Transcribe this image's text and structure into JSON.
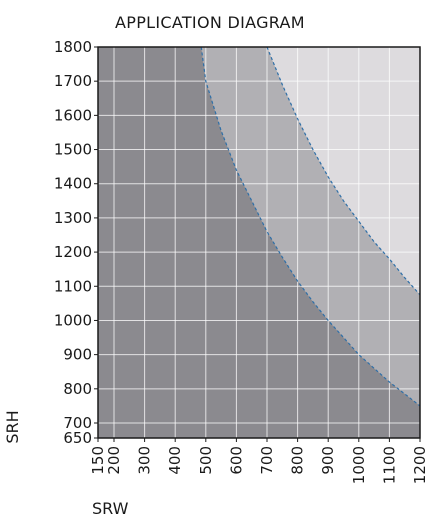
{
  "chart_data": {
    "type": "area",
    "title": "APPLICATION DIAGRAM",
    "xlabel": "SRW",
    "ylabel": "SRH",
    "xlim": [
      150,
      1200
    ],
    "ylim": [
      650,
      1800
    ],
    "x_ticks": [
      "150",
      "200",
      "300",
      "400",
      "500",
      "600",
      "700",
      "800",
      "900",
      "1000",
      "1100",
      "1200"
    ],
    "y_ticks": [
      "650",
      "700",
      "800",
      "900",
      "1000",
      "1100",
      "1200",
      "1300",
      "1400",
      "1500",
      "1600",
      "1700",
      "1800"
    ],
    "grid": true,
    "regions": [
      {
        "shade": "dark",
        "color": "#8b8a8f"
      },
      {
        "shade": "medium",
        "color": "#b1b0b4"
      },
      {
        "shade": "light",
        "color": "#dddbde"
      }
    ],
    "boundaries": [
      {
        "style": "dashed",
        "color": "#2e6fa8",
        "x": [
          485,
          500,
          550,
          600,
          650,
          700,
          750,
          800,
          850,
          900,
          950,
          1000,
          1050,
          1100,
          1150,
          1200
        ],
        "y": [
          1800,
          1700,
          1555,
          1440,
          1350,
          1260,
          1185,
          1115,
          1055,
          1000,
          950,
          900,
          860,
          820,
          785,
          750
        ]
      },
      {
        "style": "dashed",
        "color": "#2e6fa8",
        "x": [
          700,
          750,
          800,
          850,
          900,
          950,
          1000,
          1050,
          1100,
          1150,
          1200
        ],
        "y": [
          1800,
          1690,
          1590,
          1500,
          1420,
          1350,
          1290,
          1230,
          1180,
          1125,
          1075
        ]
      }
    ]
  }
}
